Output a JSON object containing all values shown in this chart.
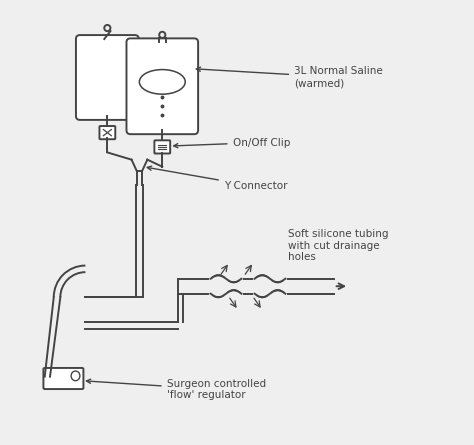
{
  "background_color": "#efefef",
  "line_color": "#444444",
  "label_saline": "3L Normal Saline\n(warmed)",
  "label_clip": "On/Off Clip",
  "label_connector": "Y Connector",
  "label_tubing": "Soft silicone tubing\nwith cut drainage\nholes",
  "label_regulator": "Surgeon controlled\n'flow' regulator",
  "lw": 1.4,
  "fontsize": 7.5
}
